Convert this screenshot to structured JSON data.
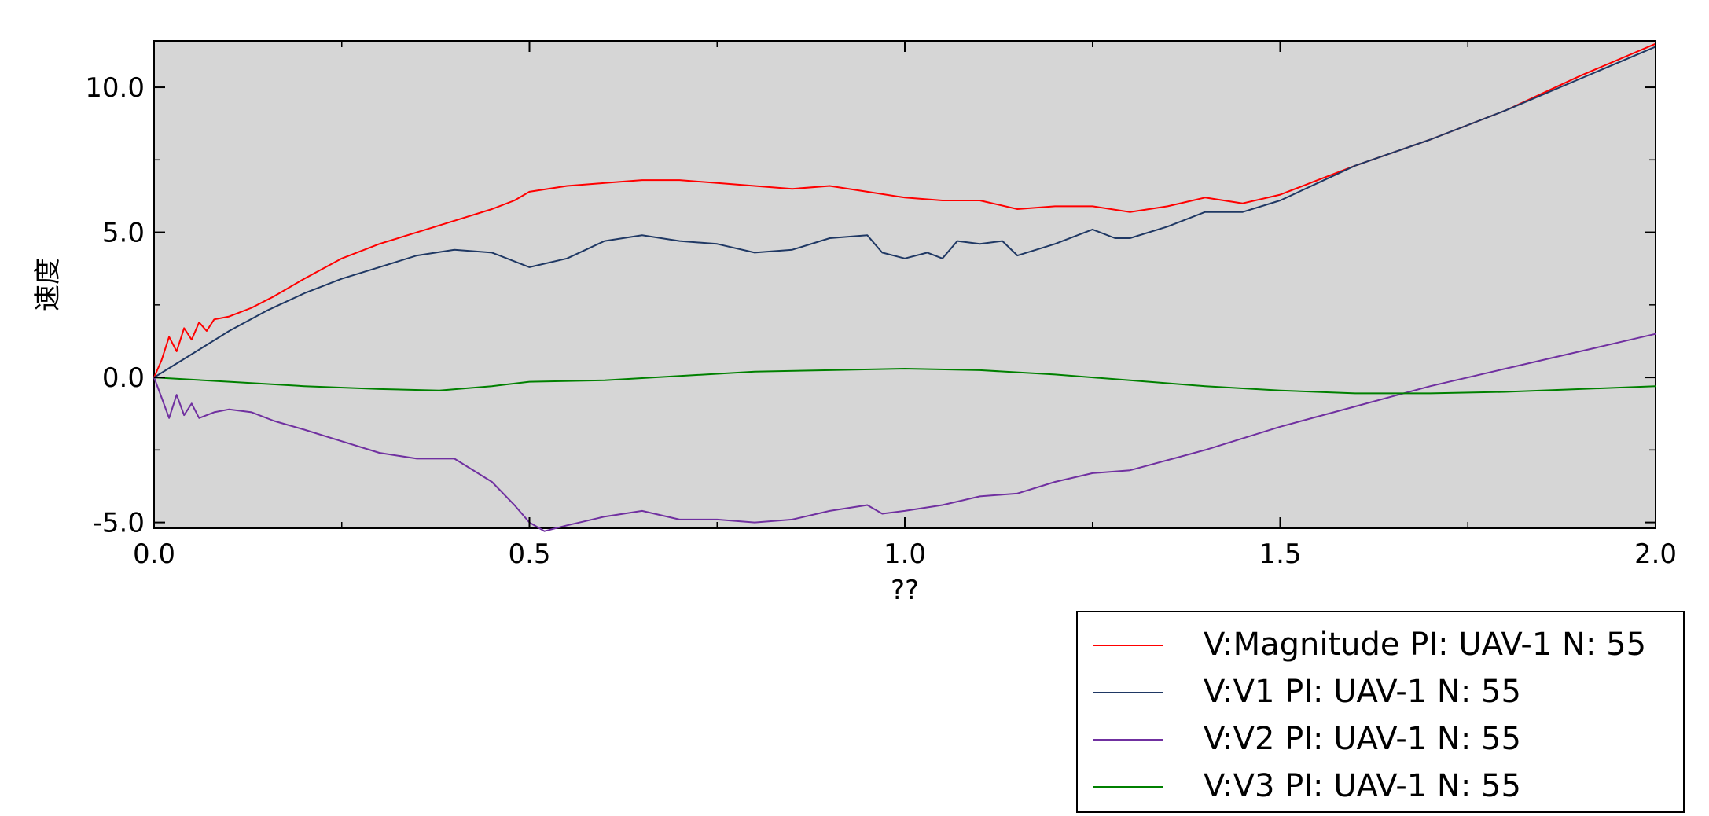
{
  "chart_data": {
    "type": "line",
    "xlabel": "??",
    "ylabel": "速度",
    "xlim": [
      0.0,
      2.0
    ],
    "ylim": [
      -5.2,
      11.6
    ],
    "xticks": [
      "0.0",
      "0.5",
      "1.0",
      "1.5",
      "2.0"
    ],
    "yticks": [
      "-5.0",
      "0.0",
      "5.0",
      "10.0"
    ],
    "grid": false,
    "legend_position": "bottom-right, outside plot",
    "plot_background": "#d6d6d6",
    "series": [
      {
        "name": "V:Magnitude PI: UAV-1 N: 55",
        "color": "#ff0000",
        "x": [
          0,
          0.01,
          0.02,
          0.03,
          0.04,
          0.05,
          0.06,
          0.07,
          0.08,
          0.1,
          0.13,
          0.16,
          0.2,
          0.25,
          0.3,
          0.35,
          0.4,
          0.45,
          0.48,
          0.5,
          0.55,
          0.6,
          0.65,
          0.7,
          0.75,
          0.8,
          0.85,
          0.9,
          0.95,
          1.0,
          1.05,
          1.1,
          1.15,
          1.2,
          1.25,
          1.3,
          1.35,
          1.4,
          1.45,
          1.5,
          1.55,
          1.6,
          1.7,
          1.8,
          1.9,
          2.0
        ],
        "y": [
          0,
          0.6,
          1.4,
          0.9,
          1.7,
          1.3,
          1.9,
          1.6,
          2.0,
          2.1,
          2.4,
          2.8,
          3.4,
          4.1,
          4.6,
          5.0,
          5.4,
          5.8,
          6.1,
          6.4,
          6.6,
          6.7,
          6.8,
          6.8,
          6.7,
          6.6,
          6.5,
          6.6,
          6.4,
          6.2,
          6.1,
          6.1,
          5.8,
          5.9,
          5.9,
          5.7,
          5.9,
          6.2,
          6.0,
          6.3,
          6.8,
          7.3,
          8.2,
          9.2,
          10.4,
          11.5
        ]
      },
      {
        "name": "V:V1 PI: UAV-1 N: 55",
        "color": "#1f3864",
        "x": [
          0,
          0.05,
          0.1,
          0.15,
          0.2,
          0.25,
          0.3,
          0.35,
          0.4,
          0.45,
          0.5,
          0.55,
          0.6,
          0.65,
          0.7,
          0.75,
          0.8,
          0.85,
          0.9,
          0.95,
          0.97,
          1.0,
          1.03,
          1.05,
          1.07,
          1.1,
          1.13,
          1.15,
          1.2,
          1.25,
          1.28,
          1.3,
          1.35,
          1.4,
          1.45,
          1.5,
          1.55,
          1.6,
          1.7,
          1.8,
          1.9,
          2.0
        ],
        "y": [
          0,
          0.8,
          1.6,
          2.3,
          2.9,
          3.4,
          3.8,
          4.2,
          4.4,
          4.3,
          3.8,
          4.1,
          4.7,
          4.9,
          4.7,
          4.6,
          4.3,
          4.4,
          4.8,
          4.9,
          4.3,
          4.1,
          4.3,
          4.1,
          4.7,
          4.6,
          4.7,
          4.2,
          4.6,
          5.1,
          4.8,
          4.8,
          5.2,
          5.7,
          5.7,
          6.1,
          6.7,
          7.3,
          8.2,
          9.2,
          10.3,
          11.4
        ]
      },
      {
        "name": "V:V2 PI: UAV-1 N: 55",
        "color": "#7030a0",
        "x": [
          0,
          0.01,
          0.02,
          0.03,
          0.04,
          0.05,
          0.06,
          0.08,
          0.1,
          0.13,
          0.16,
          0.2,
          0.25,
          0.3,
          0.35,
          0.4,
          0.45,
          0.48,
          0.5,
          0.52,
          0.55,
          0.6,
          0.65,
          0.7,
          0.75,
          0.8,
          0.85,
          0.9,
          0.95,
          0.97,
          1.0,
          1.05,
          1.1,
          1.15,
          1.2,
          1.25,
          1.3,
          1.4,
          1.5,
          1.6,
          1.7,
          1.8,
          1.9,
          2.0
        ],
        "y": [
          0,
          -0.7,
          -1.4,
          -0.6,
          -1.3,
          -0.9,
          -1.4,
          -1.2,
          -1.1,
          -1.2,
          -1.5,
          -1.8,
          -2.2,
          -2.6,
          -2.8,
          -2.8,
          -3.6,
          -4.4,
          -5.0,
          -5.3,
          -5.1,
          -4.8,
          -4.6,
          -4.9,
          -4.9,
          -5.0,
          -4.9,
          -4.6,
          -4.4,
          -4.7,
          -4.6,
          -4.4,
          -4.1,
          -4.0,
          -3.6,
          -3.3,
          -3.2,
          -2.5,
          -1.7,
          -1.0,
          -0.3,
          0.3,
          0.9,
          1.5
        ]
      },
      {
        "name": "V:V3 PI: UAV-1 N: 55",
        "color": "#008000",
        "x": [
          0,
          0.1,
          0.2,
          0.3,
          0.38,
          0.45,
          0.5,
          0.6,
          0.7,
          0.8,
          0.9,
          1.0,
          1.1,
          1.2,
          1.3,
          1.4,
          1.5,
          1.6,
          1.7,
          1.8,
          1.9,
          2.0
        ],
        "y": [
          0,
          -0.15,
          -0.3,
          -0.4,
          -0.45,
          -0.3,
          -0.15,
          -0.1,
          0.05,
          0.2,
          0.25,
          0.3,
          0.25,
          0.1,
          -0.1,
          -0.3,
          -0.45,
          -0.55,
          -0.55,
          -0.5,
          -0.4,
          -0.3
        ]
      }
    ]
  }
}
